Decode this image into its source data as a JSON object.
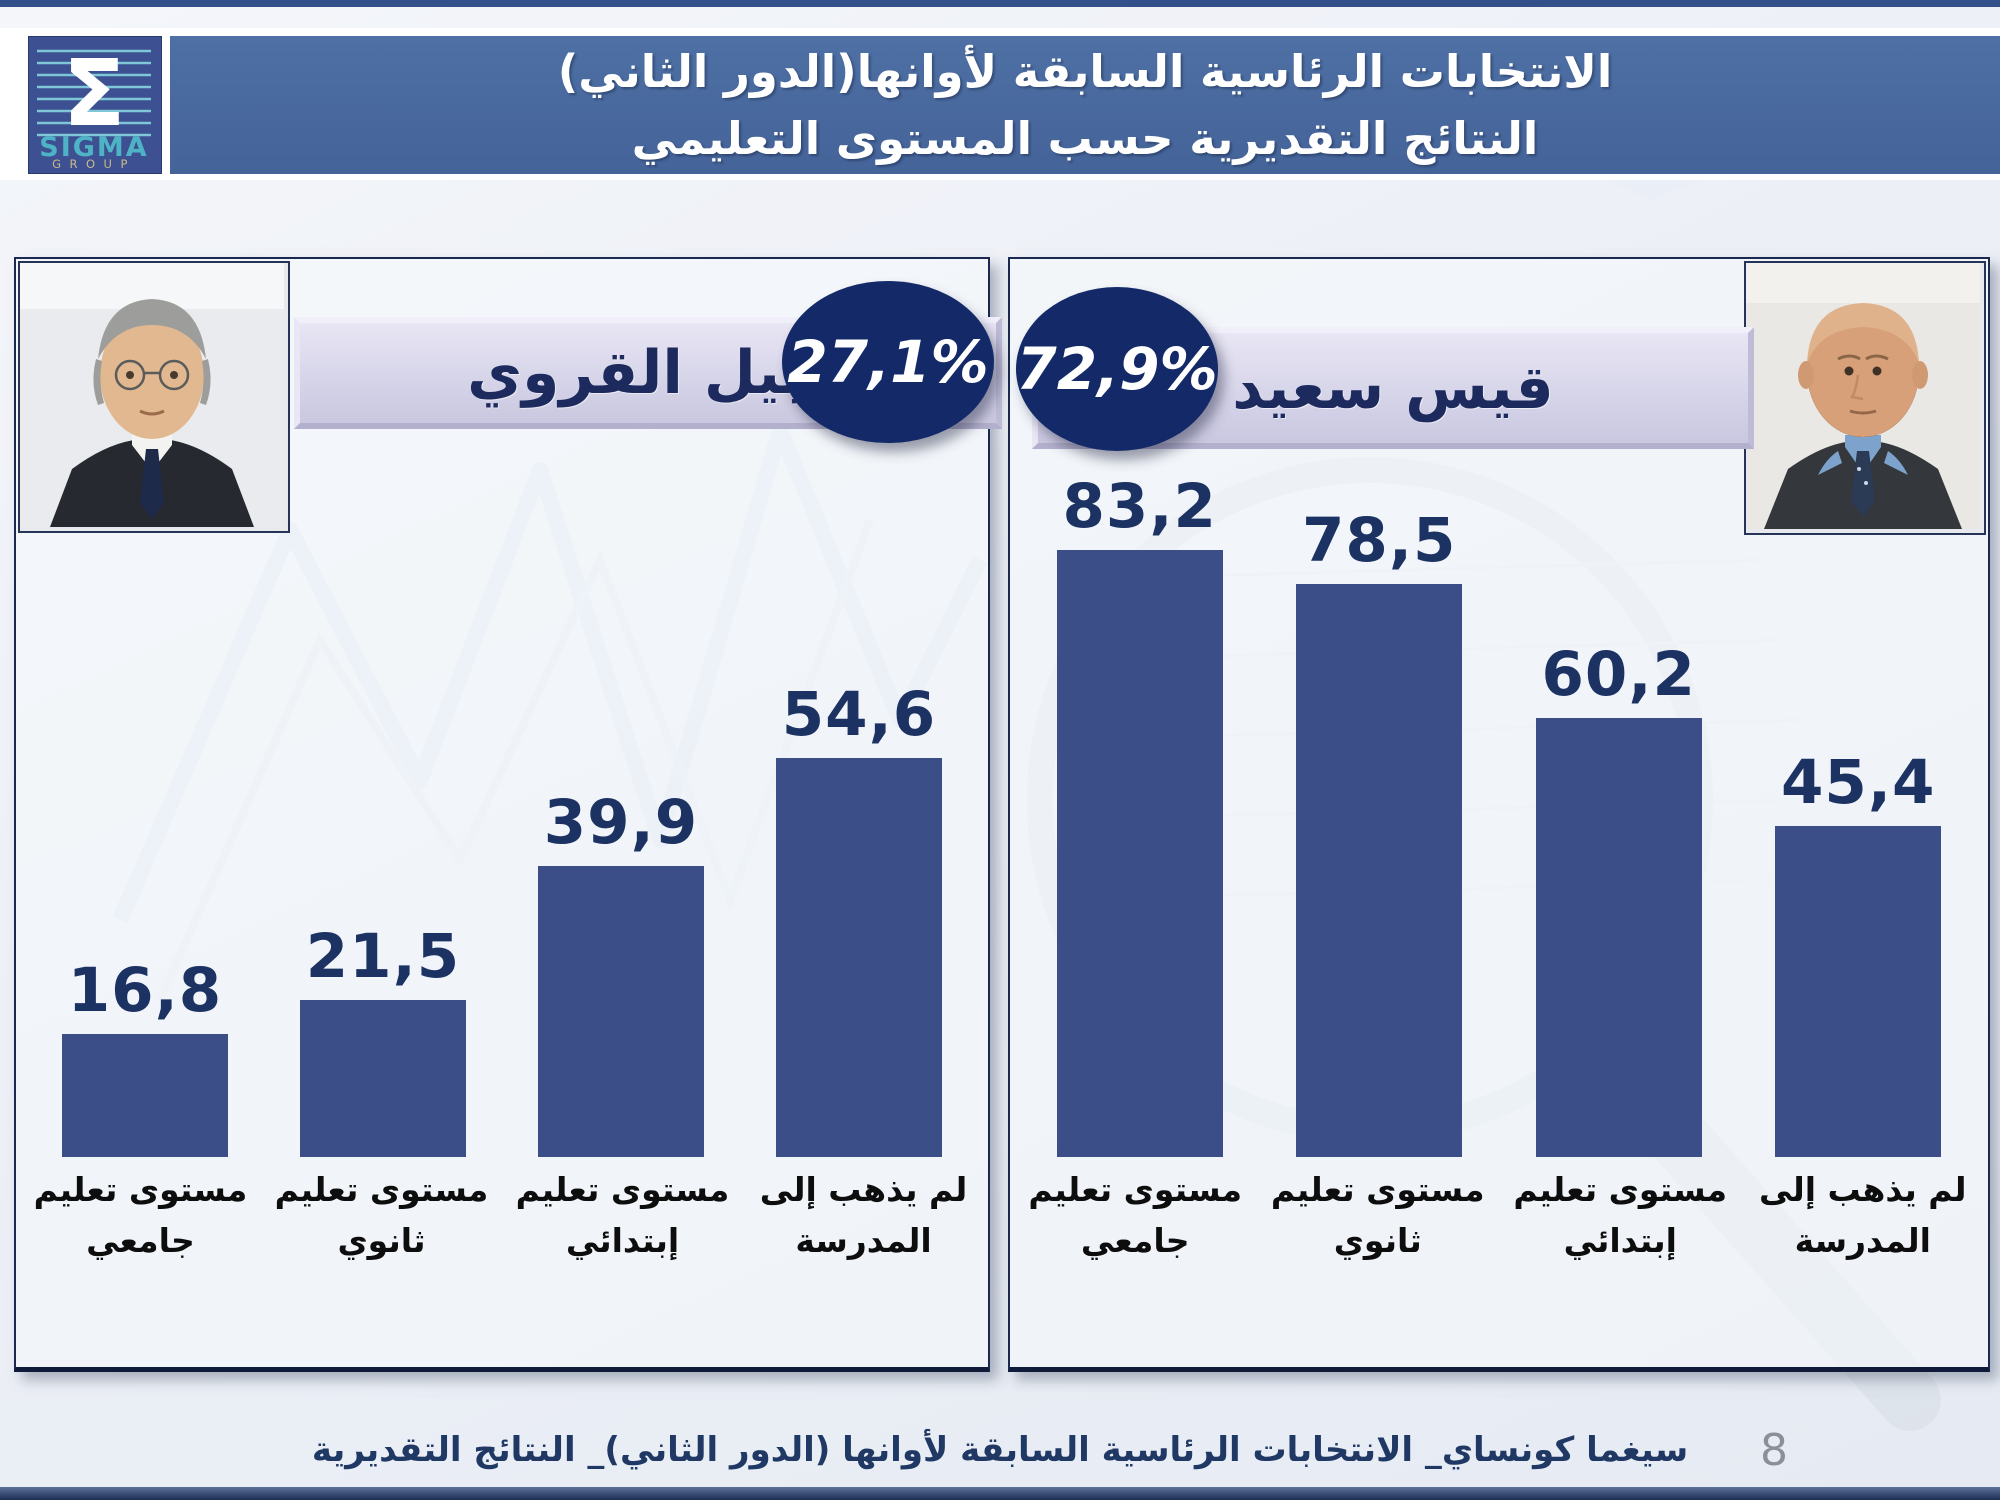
{
  "header": {
    "title_line1": "الانتخابات الرئاسية السابقة لأوانها(الدور الثاني)",
    "title_line2": "النتائج التقديرية حسب المستوى التعليمي"
  },
  "logo": {
    "symbol": "Σ",
    "sigma_text": "SIGMA",
    "group_text": "GROUP"
  },
  "footer": {
    "source_text": "سيغما كونساي_ الانتخابات الرئاسية السابقة لأوانها (الدور الثاني)_ النتائج التقديرية",
    "page_number": "8"
  },
  "colors": {
    "header_band": "#466a9e",
    "bar_fill": "#3c4e88",
    "oval_navy": "#142a68",
    "nameplate_lavender": "#d8d6ea",
    "value_label_navy": "#1c3263",
    "footer_navy": "#203864"
  },
  "chart_data": [
    {
      "type": "bar",
      "candidate": "نبيل القروي",
      "total_share": "27,1%",
      "categories": [
        "مستوى تعليم جامعي",
        "مستوى تعليم ثانوي",
        "مستوى تعليم إبتدائي",
        "لم يذهب إلى المدرسة"
      ],
      "categories_lines": [
        [
          "مستوى تعليم",
          "جامعي"
        ],
        [
          "مستوى تعليم",
          "ثانوي"
        ],
        [
          "مستوى تعليم",
          "إبتدائي"
        ],
        [
          "لم يذهب إلى",
          "المدرسة"
        ]
      ],
      "values": [
        16.8,
        21.5,
        39.9,
        54.6
      ],
      "value_labels": [
        "16,8",
        "21,5",
        "39,9",
        "54,6"
      ],
      "ylim": [
        0,
        100
      ],
      "grid": false,
      "legend": false
    },
    {
      "type": "bar",
      "candidate": "قيس سعيد",
      "total_share": "72,9%",
      "categories": [
        "مستوى تعليم جامعي",
        "مستوى تعليم ثانوي",
        "مستوى تعليم إبتدائي",
        "لم يذهب إلى المدرسة"
      ],
      "categories_lines": [
        [
          "مستوى تعليم",
          "جامعي"
        ],
        [
          "مستوى تعليم",
          "ثانوي"
        ],
        [
          "مستوى تعليم",
          "إبتدائي"
        ],
        [
          "لم يذهب إلى",
          "المدرسة"
        ]
      ],
      "values": [
        83.2,
        78.5,
        60.2,
        45.4
      ],
      "value_labels": [
        "83,2",
        "78,5",
        "60,2",
        "45,4"
      ],
      "ylim": [
        0,
        100
      ],
      "grid": false,
      "legend": false
    }
  ]
}
